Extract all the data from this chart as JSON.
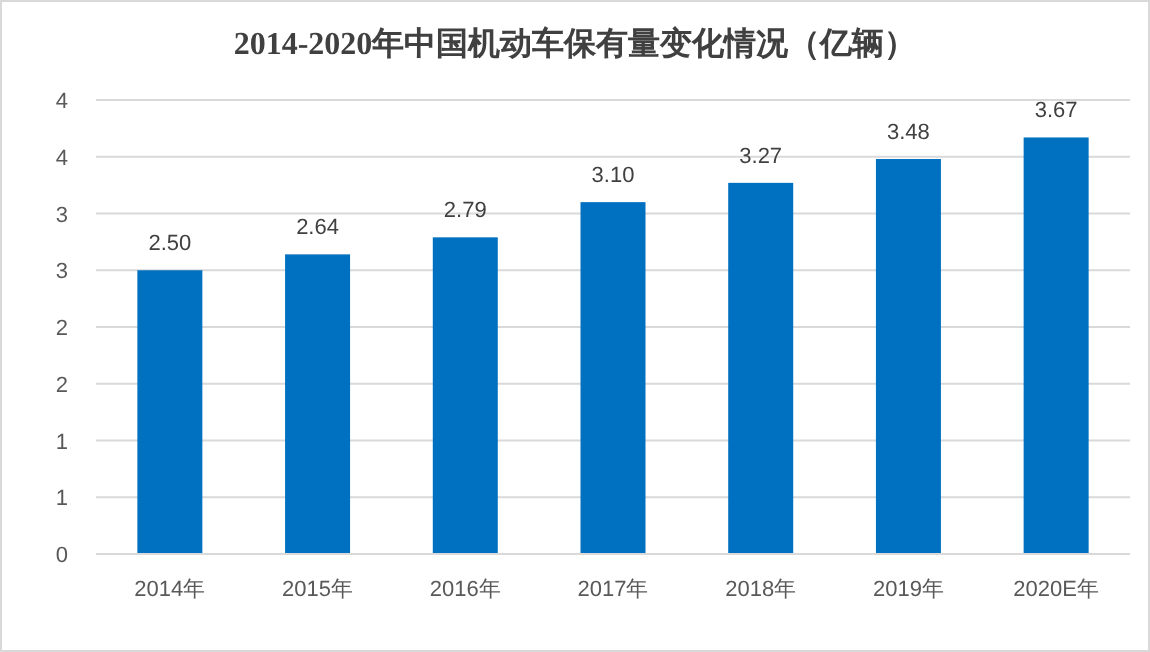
{
  "chart_data": {
    "type": "bar",
    "title": "2014-2020年中国机动车保有量变化情况（亿辆）",
    "categories": [
      "2014年",
      "2015年",
      "2016年",
      "2017年",
      "2018年",
      "2019年",
      "2020E年"
    ],
    "values": [
      2.5,
      2.64,
      2.79,
      3.1,
      3.27,
      3.48,
      3.67
    ],
    "color": "#0070c0",
    "ylim": [
      0,
      4
    ],
    "yticks": [
      0,
      {
        "value": 0.5,
        "label": "1"
      },
      1,
      {
        "value": 1.5,
        "label": "2"
      },
      2,
      {
        "value": 2.5,
        "label": "3"
      },
      3,
      {
        "value": 3.5,
        "label": "4"
      },
      4
    ],
    "value_labels": [
      "2.50",
      "2.64",
      "2.79",
      "3.10",
      "3.27",
      "3.48",
      "3.67"
    ],
    "grid": "y"
  }
}
